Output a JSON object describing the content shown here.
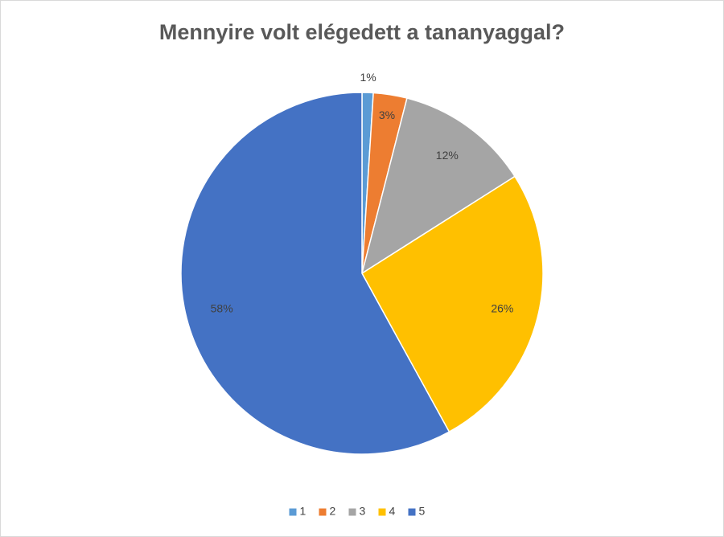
{
  "chart_data": {
    "type": "pie",
    "title": "Mennyire volt elégedett a tananyaggal?",
    "categories": [
      "1",
      "2",
      "3",
      "4",
      "5"
    ],
    "values": [
      1,
      3,
      12,
      26,
      58
    ],
    "value_labels": [
      "1%",
      "3%",
      "12%",
      "26%",
      "58%"
    ],
    "colors": [
      "#5b9bd5",
      "#ed7d31",
      "#a5a5a5",
      "#ffc000",
      "#4472c4"
    ],
    "legend": "bottom"
  }
}
